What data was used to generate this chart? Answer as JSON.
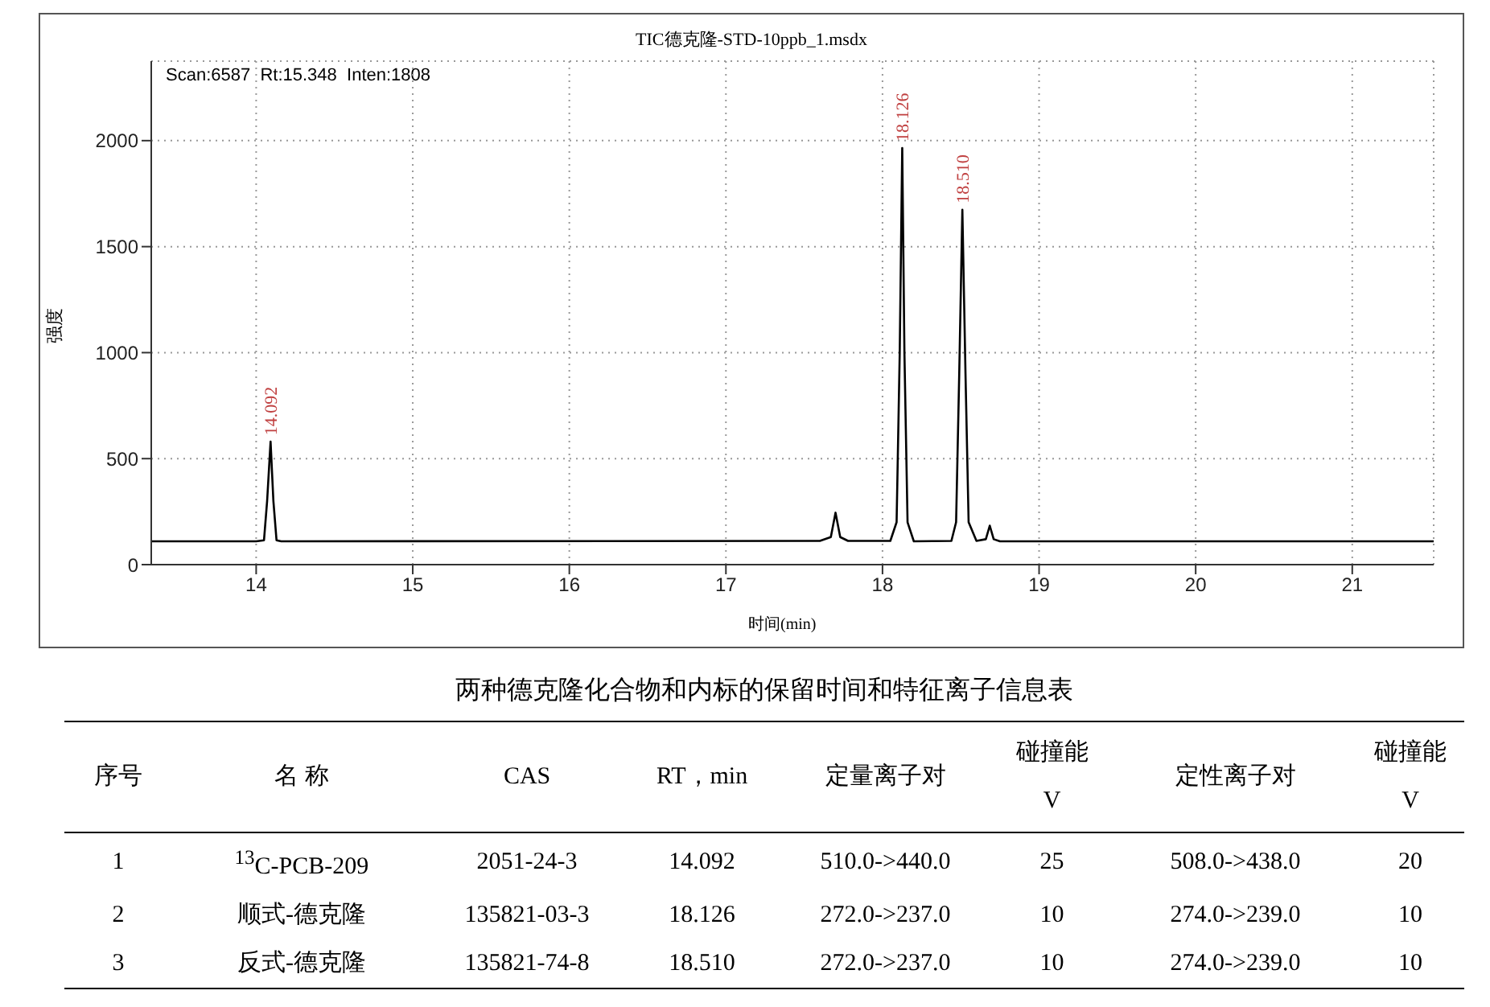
{
  "chart_data": [
    {
      "type": "line",
      "title": "TIC德克隆-STD-10ppb_1.msdx",
      "xlabel": "时间(min)",
      "ylabel": "强度",
      "x": [
        13.33,
        14.0,
        14.05,
        14.07,
        14.092,
        14.11,
        14.13,
        14.16,
        17.6,
        17.67,
        17.7,
        17.73,
        17.78,
        18.05,
        18.09,
        18.11,
        18.126,
        18.14,
        18.16,
        18.2,
        18.44,
        18.47,
        18.49,
        18.51,
        18.53,
        18.55,
        18.6,
        18.66,
        18.685,
        18.71,
        18.75,
        21.52
      ],
      "values": [
        110,
        110,
        115,
        300,
        580,
        300,
        115,
        110,
        112,
        130,
        245,
        130,
        112,
        112,
        200,
        1000,
        1965,
        1000,
        200,
        110,
        112,
        200,
        900,
        1674,
        900,
        200,
        112,
        120,
        184,
        120,
        110,
        110
      ],
      "color": "#000000",
      "marker": "none",
      "line_style": "solid",
      "grid": true,
      "xlim": [
        13.33,
        21.52
      ],
      "xticks": [
        14,
        15,
        16,
        17,
        18,
        19,
        20,
        21
      ],
      "ylim": [
        0,
        2375
      ],
      "yticks": [
        0,
        500,
        1000,
        1500,
        2000
      ],
      "annotations": [
        "Scan:6587  Rt:15.348  Inten:1808",
        {
          "text": "14.092",
          "x": 14.092,
          "y": 580
        },
        {
          "text": "18.126",
          "x": 18.126,
          "y": 1965
        },
        {
          "text": "18.510",
          "x": 18.51,
          "y": 1674
        }
      ]
    },
    {
      "type": "other",
      "title": "两种德克隆化合物和内标的保留时间和特征离子信息表",
      "annotations": [
        "序号",
        "名 称",
        "CAS",
        "RT，min",
        "定量离子对",
        "碰撞能\nV",
        "定性离子对",
        "碰撞能\nV",
        "1",
        "$^{13}$C-PCB-209",
        "2051-24-3",
        "14.092",
        "510.0->440.0",
        "25",
        "508.0->438.0",
        "20",
        "2",
        "顺式-德克隆",
        "135821-03-3",
        "18.126",
        "272.0->237.0",
        "10",
        "274.0->239.0",
        "10",
        "3",
        "反式-德克隆",
        "135821-74-8",
        "18.510",
        "272.0->237.0",
        "10",
        "274.0->239.0",
        "10"
      ]
    }
  ]
}
